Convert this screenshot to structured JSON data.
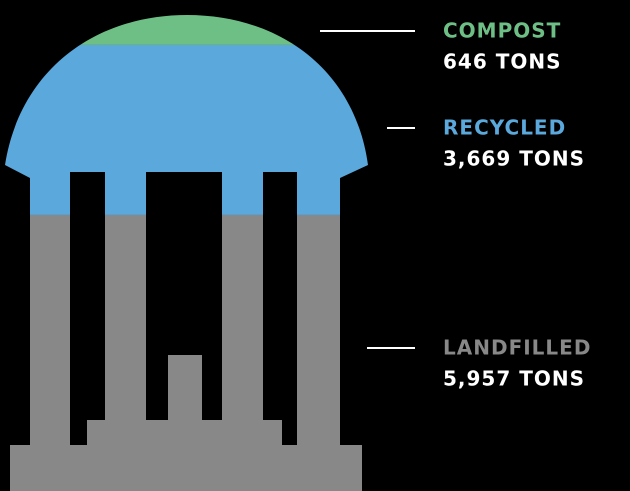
{
  "chart_data": {
    "type": "pictorial",
    "categories": [
      "COMPOST",
      "RECYCLED",
      "LANDFILLED"
    ],
    "values": [
      646,
      3669,
      5957
    ],
    "value_labels": [
      "646 TONS",
      "3,669 TONS",
      "5,957 TONS"
    ],
    "colors": [
      "#6dbf86",
      "#5aa8dc",
      "#888888"
    ]
  }
}
